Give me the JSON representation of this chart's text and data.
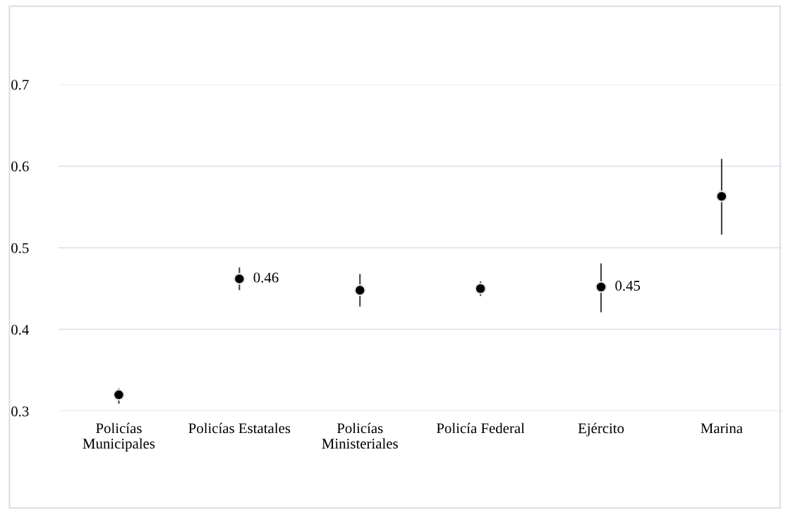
{
  "chart_data": {
    "type": "scatter",
    "categories": [
      "Policías\nMunicipales",
      "Policías Estatales",
      "Policías\nMinisteriales",
      "Policía Federal",
      "Ejército",
      "Marina"
    ],
    "values": [
      0.32,
      0.462,
      0.448,
      0.45,
      0.452,
      0.563
    ],
    "errors": [
      [
        0.31,
        0.327
      ],
      [
        0.449,
        0.475
      ],
      [
        0.429,
        0.467
      ],
      [
        0.442,
        0.458
      ],
      [
        0.422,
        0.48
      ],
      [
        0.517,
        0.608
      ]
    ],
    "value_labels": [
      null,
      "0.46",
      null,
      null,
      "0.45",
      null
    ],
    "color": "#000000",
    "marker": "circle",
    "ylim": [
      0.3,
      0.7
    ],
    "yticks": [
      0.3,
      0.4,
      0.5,
      0.6,
      0.7
    ],
    "grid": "y",
    "legend": false
  }
}
